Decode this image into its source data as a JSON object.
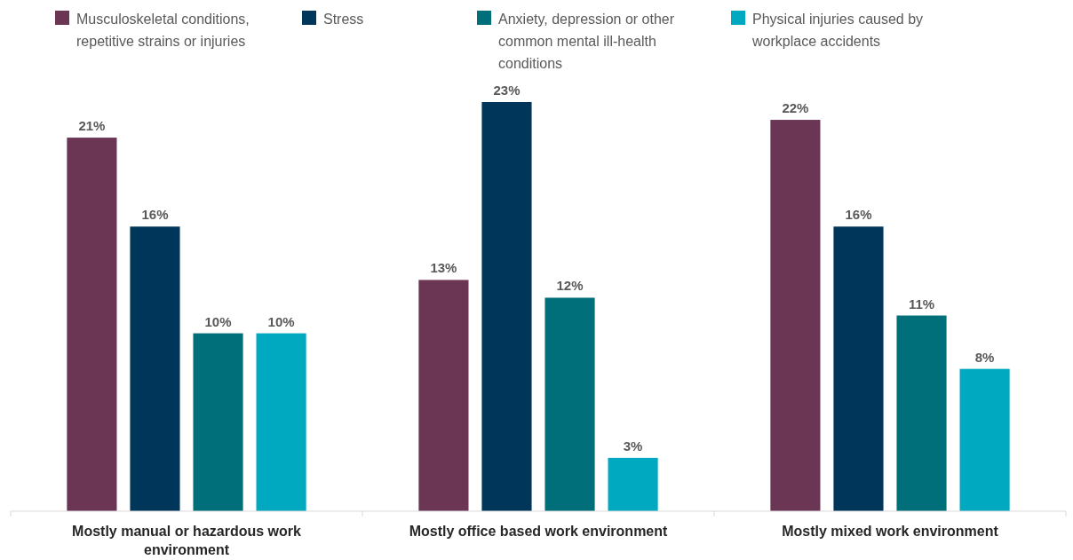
{
  "chart_data": {
    "type": "bar",
    "categories": [
      "Mostly manual or hazardous work environment",
      "Mostly office based work environment",
      "Mostly mixed work environment"
    ],
    "series": [
      {
        "name": "Musculoskeletal conditions, repetitive strains or injuries",
        "color": "#6b3654",
        "values": [
          21,
          13,
          22
        ],
        "value_labels": [
          "21%",
          "13%",
          "22%"
        ]
      },
      {
        "name": "Stress",
        "color": "#00365a",
        "values": [
          16,
          23,
          16
        ],
        "value_labels": [
          "16%",
          "23%",
          "16%"
        ]
      },
      {
        "name": "Anxiety, depression or other common mental ill-health conditions",
        "color": "#006f79",
        "values": [
          10,
          12,
          11
        ],
        "value_labels": [
          "10%",
          "12%",
          "11%"
        ]
      },
      {
        "name": "Physical injuries caused by workplace accidents",
        "color": "#00a9c0",
        "values": [
          10,
          3,
          8
        ],
        "value_labels": [
          "10%",
          "3%",
          "8%"
        ]
      }
    ],
    "legend": "top"
  }
}
